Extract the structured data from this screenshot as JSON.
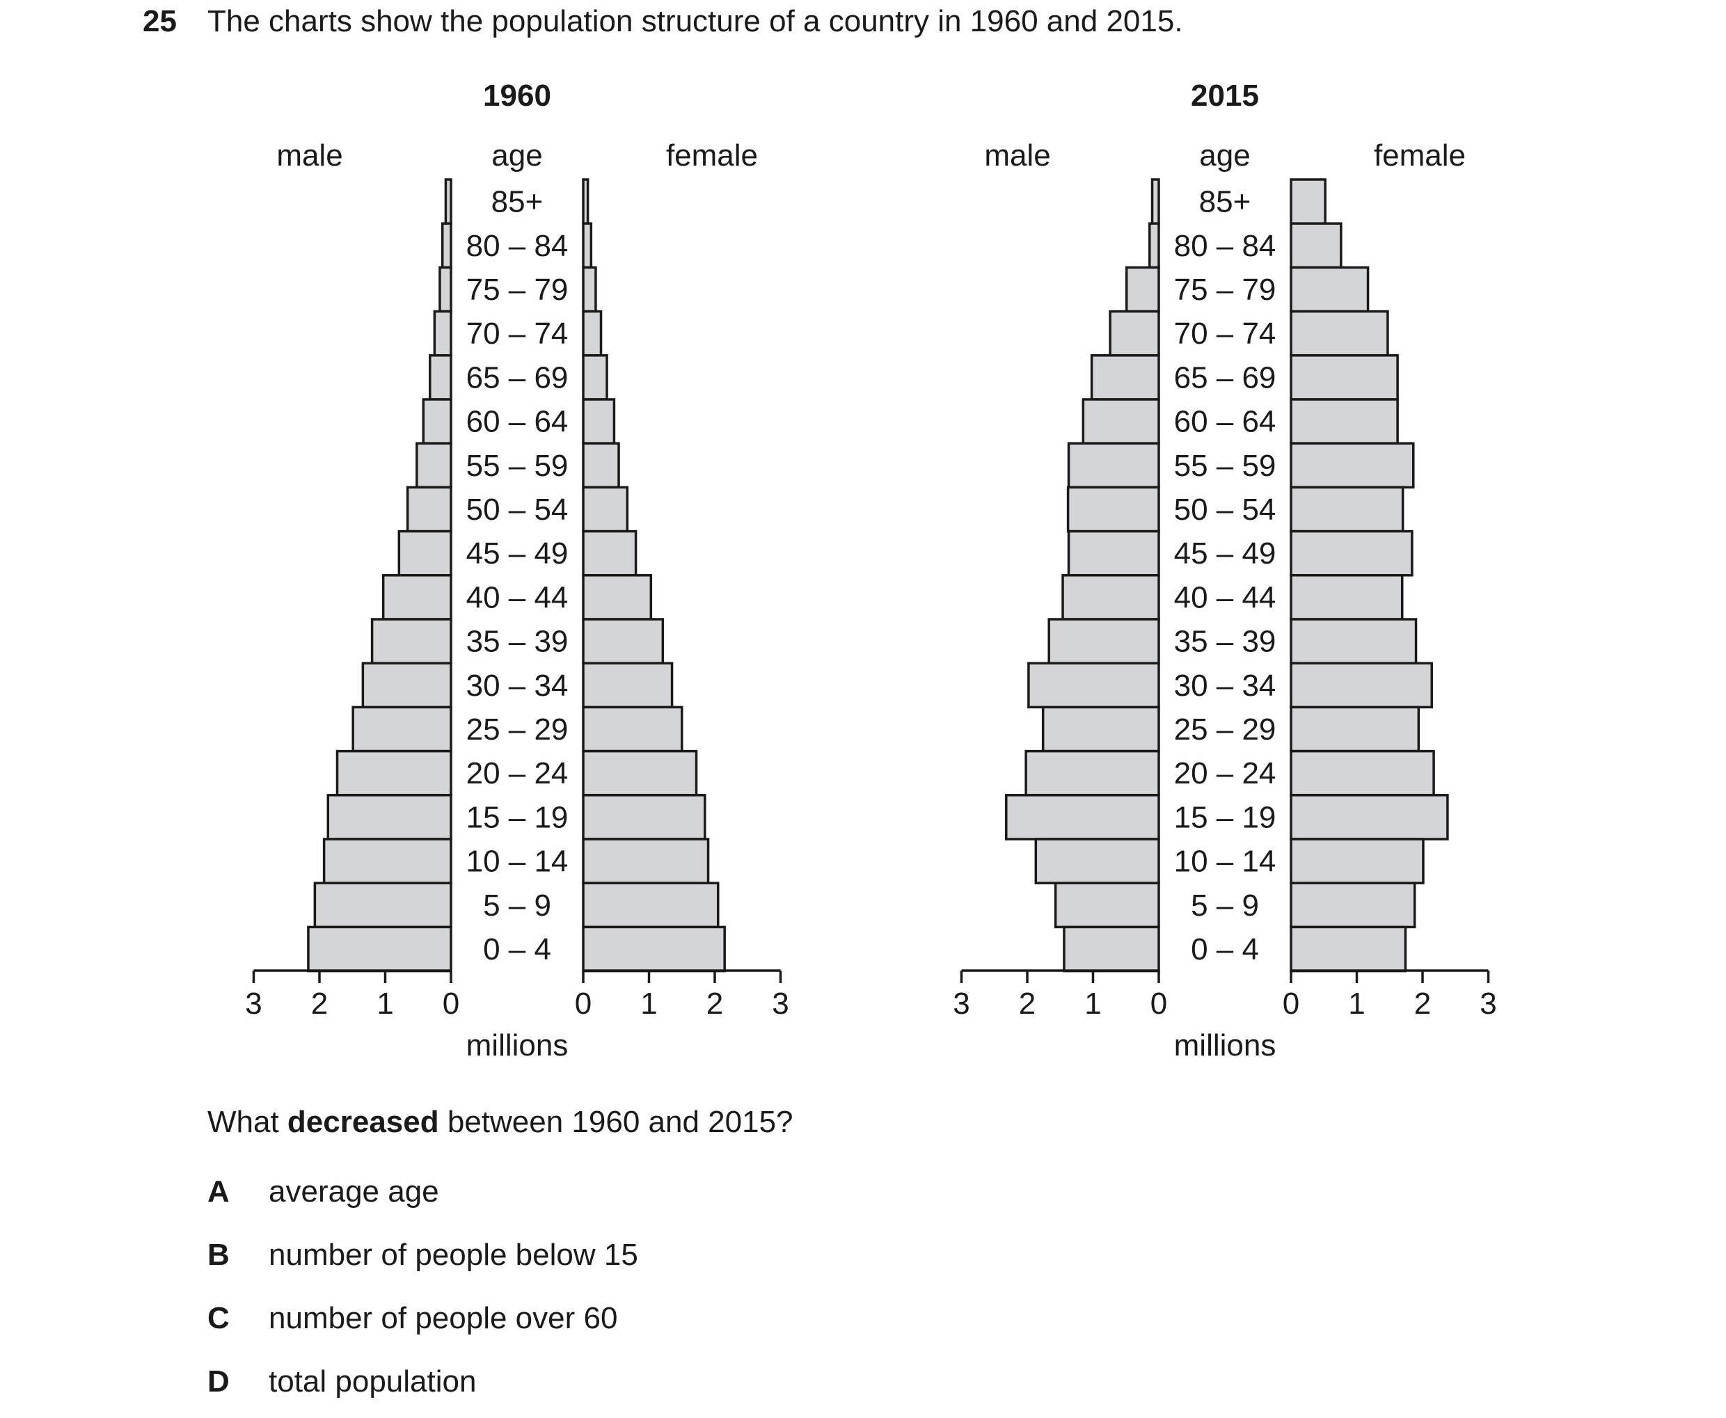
{
  "question": {
    "number": "25",
    "stem": "The charts show the population structure of a country in 1960 and 2015.",
    "prompt_pre": "What ",
    "prompt_bold": "decreased",
    "prompt_post": " between 1960 and 2015?",
    "options": [
      {
        "letter": "A",
        "text": "average age"
      },
      {
        "letter": "B",
        "text": "number of people below 15"
      },
      {
        "letter": "C",
        "text": "number of people over 60"
      },
      {
        "letter": "D",
        "text": "total population"
      }
    ]
  },
  "chart_data": [
    {
      "type": "bar",
      "title": "1960",
      "left_label": "male",
      "center_label": "age",
      "right_label": "female",
      "xlabel": "millions",
      "xlim": [
        0,
        3
      ],
      "ticks": [
        0,
        1,
        2,
        3
      ],
      "categories": [
        "85+",
        "80 – 84",
        "75 – 79",
        "70 – 74",
        "65 – 69",
        "60 – 64",
        "55 – 59",
        "50 – 54",
        "45 – 49",
        "40 – 44",
        "35 – 39",
        "30 – 34",
        "25 – 29",
        "20 – 24",
        "15 – 19",
        "10 – 14",
        "5 – 9",
        "0 – 4"
      ],
      "series": [
        {
          "name": "male",
          "values": [
            0.08,
            0.13,
            0.17,
            0.25,
            0.32,
            0.42,
            0.52,
            0.66,
            0.79,
            1.03,
            1.2,
            1.34,
            1.49,
            1.73,
            1.87,
            1.93,
            2.07,
            2.17
          ]
        },
        {
          "name": "female",
          "values": [
            0.07,
            0.12,
            0.19,
            0.27,
            0.36,
            0.47,
            0.54,
            0.67,
            0.8,
            1.03,
            1.21,
            1.35,
            1.5,
            1.72,
            1.85,
            1.9,
            2.05,
            2.15
          ]
        }
      ]
    },
    {
      "type": "bar",
      "title": "2015",
      "left_label": "male",
      "center_label": "age",
      "right_label": "female",
      "xlabel": "millions",
      "xlim": [
        0,
        3
      ],
      "ticks": [
        0,
        1,
        2,
        3
      ],
      "categories": [
        "85+",
        "80 – 84",
        "75 – 79",
        "70 – 74",
        "65 – 69",
        "60 – 64",
        "55 – 59",
        "50 – 54",
        "45 – 49",
        "40 – 44",
        "35 – 39",
        "30 – 34",
        "25 – 29",
        "20 – 24",
        "15 – 19",
        "10 – 14",
        "5 – 9",
        "0 – 4"
      ],
      "series": [
        {
          "name": "male",
          "values": [
            0.1,
            0.14,
            0.49,
            0.74,
            1.02,
            1.15,
            1.37,
            1.38,
            1.37,
            1.46,
            1.67,
            1.98,
            1.76,
            2.02,
            2.32,
            1.87,
            1.57,
            1.44
          ]
        },
        {
          "name": "female",
          "values": [
            0.52,
            0.76,
            1.17,
            1.47,
            1.62,
            1.62,
            1.86,
            1.7,
            1.84,
            1.69,
            1.9,
            2.14,
            1.94,
            2.17,
            2.38,
            2.01,
            1.88,
            1.74
          ]
        }
      ]
    }
  ]
}
